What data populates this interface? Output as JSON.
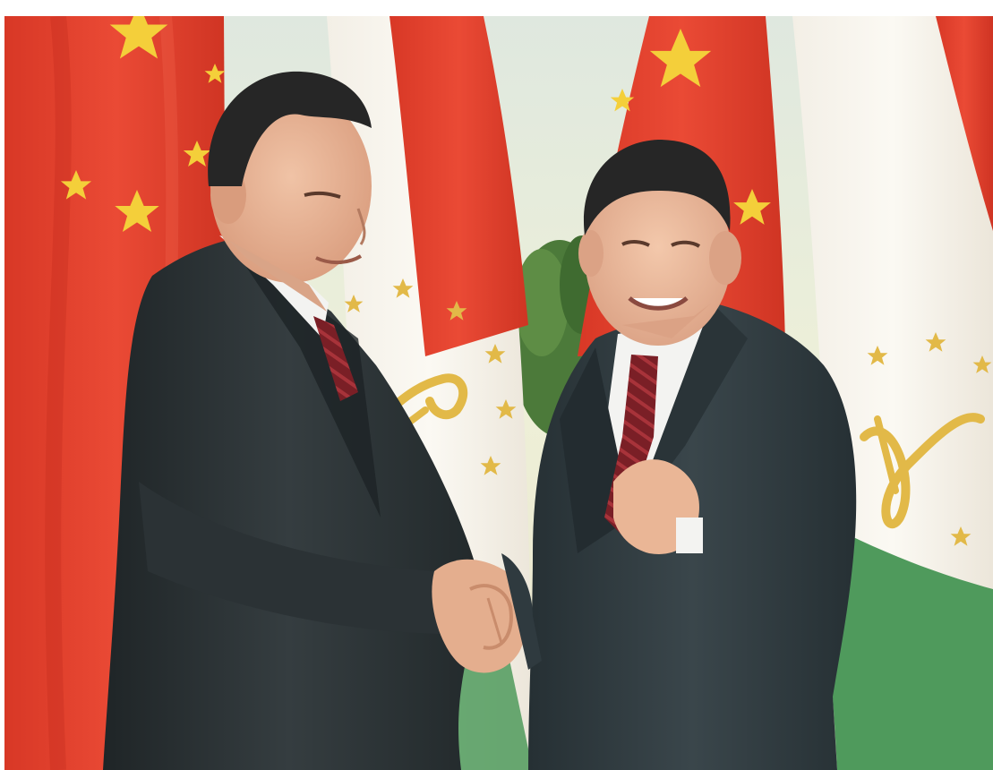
{
  "image": {
    "kind": "news-photo",
    "subject": "two-men-shaking-hands",
    "background": "alternating-national-flags",
    "flags": [
      "china-flag",
      "tajikistan-flag",
      "china-flag",
      "tajikistan-flag"
    ]
  },
  "colors": {
    "page_background": "#ffffff",
    "backdrop": "#e6e8cf",
    "flag_red": "#e2402f",
    "flag_red_dark": "#c7301f",
    "flag_star_yellow": "#f4cf3a",
    "tajik_white": "#f6f2ea",
    "tajik_green": "#4f9a5c",
    "tajik_gold": "#e2b948",
    "plant_green": "#4c7a3a",
    "suit_left": "#2a3133",
    "suit_right": "#2f3a3f",
    "shirt": "#f3f3f1",
    "tie": "#7a1f26",
    "skin": "#e8b79a",
    "hair": "#262626"
  }
}
